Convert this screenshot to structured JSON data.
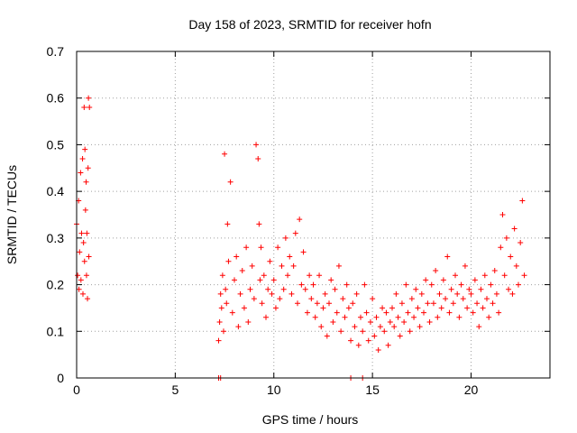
{
  "chart_data": {
    "type": "scatter",
    "title": "Day 158 of 2023, SRMTID for receiver hofn",
    "xlabel": "GPS time / hours",
    "ylabel": "SRMTID / TECUs",
    "xlim": [
      0,
      24
    ],
    "ylim": [
      0,
      0.7
    ],
    "xticks": [
      0,
      5,
      10,
      15,
      20
    ],
    "xtick_labels": [
      "0",
      "5",
      "10",
      "15",
      "20"
    ],
    "yticks": [
      0,
      0.1,
      0.2,
      0.3,
      0.4,
      0.5,
      0.6,
      0.7
    ],
    "ytick_labels": [
      "0",
      "0.1",
      "0.2",
      "0.3",
      "0.4",
      "0.5",
      "0.6",
      "0.7"
    ],
    "grid": true,
    "marker": "+",
    "series": [
      {
        "name": "SRMTID",
        "color": "#ff0000",
        "x": [
          0.0,
          0.05,
          0.1,
          0.12,
          0.15,
          0.2,
          0.22,
          0.25,
          0.3,
          0.32,
          0.35,
          0.38,
          0.4,
          0.42,
          0.45,
          0.48,
          0.5,
          0.52,
          0.55,
          0.58,
          0.6,
          0.62,
          0.65,
          7.2,
          7.25,
          7.3,
          7.35,
          7.4,
          7.45,
          7.5,
          7.55,
          7.6,
          7.65,
          7.7,
          7.8,
          7.9,
          8.0,
          8.1,
          8.2,
          8.3,
          8.4,
          8.5,
          8.6,
          8.7,
          8.8,
          8.9,
          9.0,
          9.1,
          9.2,
          9.25,
          9.3,
          9.35,
          9.4,
          9.5,
          9.6,
          9.7,
          9.8,
          9.9,
          10.0,
          10.1,
          10.2,
          10.3,
          10.4,
          10.5,
          10.6,
          10.7,
          10.8,
          10.9,
          11.0,
          11.1,
          11.2,
          11.3,
          11.4,
          11.5,
          11.6,
          11.7,
          11.8,
          11.9,
          12.0,
          12.1,
          12.2,
          12.3,
          12.4,
          12.5,
          12.6,
          12.7,
          12.8,
          12.9,
          13.0,
          13.1,
          13.2,
          13.3,
          13.4,
          13.5,
          13.6,
          13.7,
          13.8,
          13.9,
          14.0,
          14.1,
          14.2,
          14.3,
          14.4,
          14.5,
          14.6,
          14.7,
          14.8,
          14.9,
          15.0,
          15.1,
          15.2,
          15.3,
          15.4,
          15.5,
          15.6,
          15.7,
          15.8,
          15.9,
          16.0,
          16.1,
          16.2,
          16.3,
          16.4,
          16.5,
          16.6,
          16.7,
          16.8,
          16.9,
          17.0,
          17.1,
          17.2,
          17.3,
          17.4,
          17.5,
          17.6,
          17.7,
          17.8,
          17.9,
          18.0,
          18.1,
          18.2,
          18.3,
          18.4,
          18.5,
          18.6,
          18.7,
          18.8,
          18.9,
          19.0,
          19.1,
          19.2,
          19.3,
          19.4,
          19.5,
          19.6,
          19.7,
          19.8,
          19.9,
          20.0,
          20.1,
          20.2,
          20.3,
          20.4,
          20.5,
          20.6,
          20.7,
          20.8,
          20.9,
          21.0,
          21.1,
          21.2,
          21.3,
          21.4,
          21.5,
          21.6,
          21.7,
          21.8,
          21.9,
          22.0,
          22.1,
          22.2,
          22.3,
          22.4,
          22.5,
          22.6,
          22.7,
          7.2,
          7.3,
          13.9,
          14.5
        ],
        "y": [
          0.33,
          0.22,
          0.38,
          0.19,
          0.27,
          0.44,
          0.21,
          0.31,
          0.47,
          0.18,
          0.29,
          0.58,
          0.25,
          0.49,
          0.36,
          0.42,
          0.22,
          0.31,
          0.17,
          0.45,
          0.6,
          0.26,
          0.58,
          0.08,
          0.12,
          0.18,
          0.15,
          0.22,
          0.1,
          0.48,
          0.19,
          0.16,
          0.33,
          0.25,
          0.42,
          0.14,
          0.21,
          0.26,
          0.11,
          0.18,
          0.23,
          0.15,
          0.28,
          0.12,
          0.19,
          0.24,
          0.17,
          0.5,
          0.47,
          0.33,
          0.21,
          0.28,
          0.16,
          0.22,
          0.13,
          0.19,
          0.25,
          0.18,
          0.21,
          0.15,
          0.28,
          0.17,
          0.24,
          0.19,
          0.3,
          0.22,
          0.26,
          0.18,
          0.24,
          0.31,
          0.16,
          0.34,
          0.2,
          0.27,
          0.19,
          0.14,
          0.22,
          0.17,
          0.2,
          0.13,
          0.16,
          0.22,
          0.11,
          0.15,
          0.18,
          0.09,
          0.16,
          0.21,
          0.12,
          0.19,
          0.14,
          0.24,
          0.1,
          0.17,
          0.13,
          0.2,
          0.15,
          0.08,
          0.16,
          0.11,
          0.18,
          0.07,
          0.13,
          0.1,
          0.2,
          0.14,
          0.08,
          0.12,
          0.17,
          0.09,
          0.13,
          0.06,
          0.11,
          0.15,
          0.1,
          0.14,
          0.07,
          0.12,
          0.15,
          0.11,
          0.18,
          0.13,
          0.09,
          0.16,
          0.12,
          0.2,
          0.14,
          0.1,
          0.17,
          0.13,
          0.19,
          0.15,
          0.11,
          0.18,
          0.14,
          0.21,
          0.16,
          0.12,
          0.2,
          0.16,
          0.23,
          0.13,
          0.18,
          0.15,
          0.21,
          0.17,
          0.26,
          0.14,
          0.19,
          0.16,
          0.22,
          0.18,
          0.13,
          0.2,
          0.17,
          0.24,
          0.15,
          0.19,
          0.18,
          0.14,
          0.21,
          0.16,
          0.11,
          0.19,
          0.15,
          0.22,
          0.17,
          0.13,
          0.2,
          0.16,
          0.23,
          0.18,
          0.14,
          0.28,
          0.35,
          0.22,
          0.3,
          0.19,
          0.26,
          0.18,
          0.32,
          0.24,
          0.2,
          0.29,
          0.38,
          0.22,
          0.0,
          0.0,
          0.0,
          0.0
        ]
      }
    ]
  }
}
